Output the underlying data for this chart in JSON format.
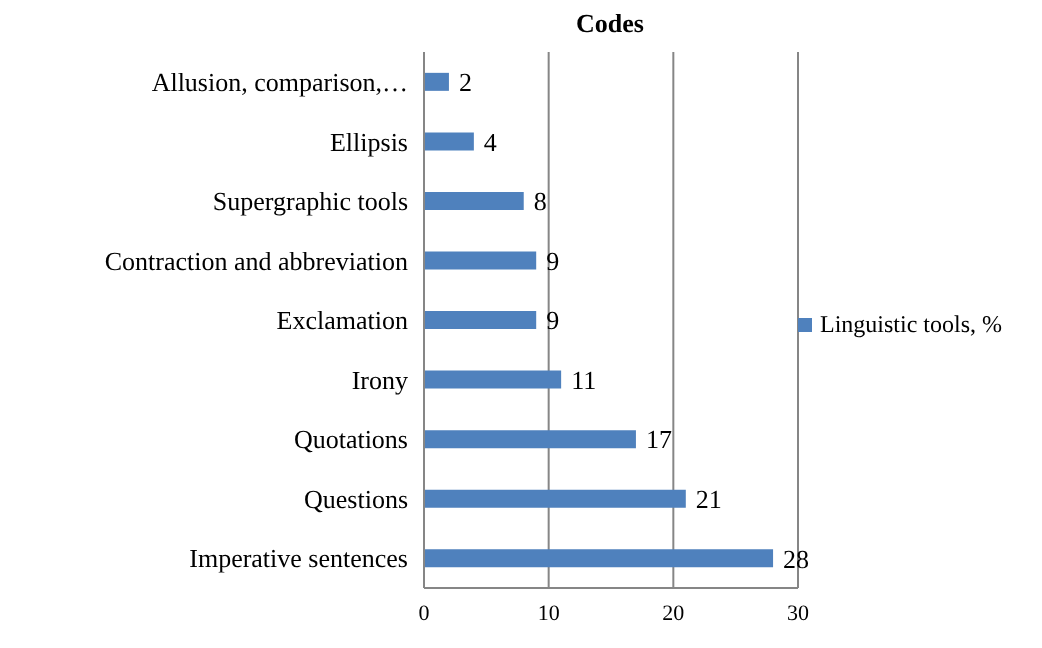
{
  "chart_data": {
    "type": "bar",
    "orientation": "horizontal",
    "title": "Codes",
    "categories": [
      "Allusion, comparison,…",
      "Ellipsis",
      "Supergraphic tools",
      "Contraction and abbreviation",
      "Exclamation",
      "Irony",
      "Quotations",
      "Questions",
      "Imperative sentences"
    ],
    "series": [
      {
        "name": "Linguistic tools, %",
        "color": "#4f81bd",
        "values": [
          2,
          4,
          8,
          9,
          9,
          11,
          17,
          21,
          28
        ]
      }
    ],
    "xlim": [
      0,
      30
    ],
    "xticks": [
      0,
      10,
      20,
      30
    ],
    "grid": "x",
    "legend": "right",
    "data_labels": true
  }
}
